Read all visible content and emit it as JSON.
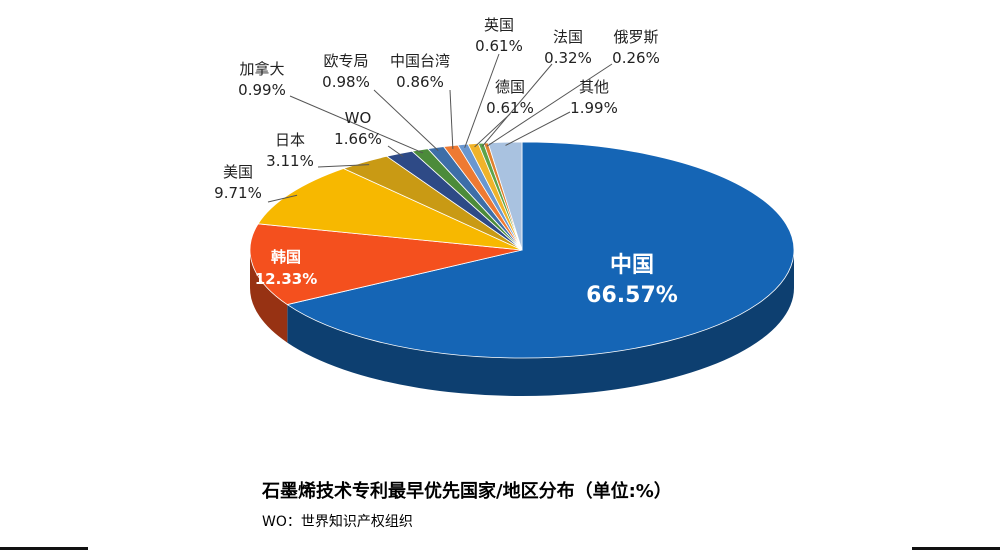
{
  "chart_data": {
    "type": "pie",
    "title": "石墨烯技术专利最早优先国家/地区分布（单位:%）",
    "subtitle": "WO：世界知识产权组织",
    "slices": [
      {
        "label": "中国",
        "value": 66.57,
        "value_text": "66.57%",
        "color": "#1565b5"
      },
      {
        "label": "韩国",
        "value": 12.33,
        "value_text": "12.33%",
        "color": "#f4501e"
      },
      {
        "label": "美国",
        "value": 9.71,
        "value_text": "9.71%",
        "color": "#f7b800"
      },
      {
        "label": "日本",
        "value": 3.11,
        "value_text": "3.11%",
        "color": "#c99a14"
      },
      {
        "label": "WO",
        "value": 1.66,
        "value_text": "1.66%",
        "color": "#2e4a86"
      },
      {
        "label": "加拿大",
        "value": 0.99,
        "value_text": "0.99%",
        "color": "#4c8b3a"
      },
      {
        "label": "欧专局",
        "value": 0.98,
        "value_text": "0.98%",
        "color": "#3d6ea8"
      },
      {
        "label": "中国台湾",
        "value": 0.86,
        "value_text": "0.86%",
        "color": "#ee7a33"
      },
      {
        "label": "英国",
        "value": 0.61,
        "value_text": "0.61%",
        "color": "#6a97d0"
      },
      {
        "label": "德国",
        "value": 0.61,
        "value_text": "0.61%",
        "color": "#f0b32a"
      },
      {
        "label": "法国",
        "value": 0.32,
        "value_text": "0.32%",
        "color": "#5da34a"
      },
      {
        "label": "俄罗斯",
        "value": 0.26,
        "value_text": "0.26%",
        "color": "#e0802e"
      },
      {
        "label": "其他",
        "value": 1.99,
        "value_text": "1.99%",
        "color": "#a9c2e0"
      }
    ]
  }
}
